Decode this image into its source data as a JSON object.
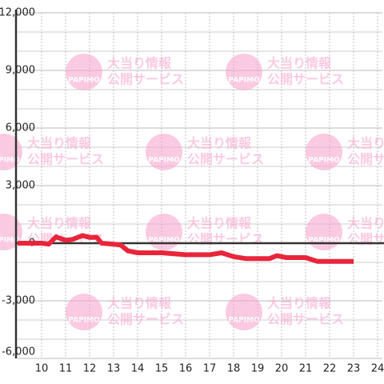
{
  "chart_data": {
    "type": "line",
    "x": [
      9,
      10,
      10.3,
      10.6,
      11,
      11.3,
      11.7,
      12,
      12.3,
      12.5,
      13,
      13.3,
      13.6,
      14,
      15,
      16,
      17,
      17.5,
      18,
      18.5,
      19,
      19.5,
      19.8,
      20.2,
      21,
      21.5,
      22,
      23
    ],
    "series": [
      {
        "color": "#e8253a",
        "values": [
          0,
          0,
          -50,
          330,
          150,
          200,
          400,
          300,
          300,
          0,
          -50,
          -100,
          -400,
          -500,
          -500,
          -600,
          -600,
          -500,
          -700,
          -800,
          -800,
          -800,
          -650,
          -750,
          -750,
          -950,
          -950,
          -950
        ]
      }
    ],
    "xlim": [
      9,
      24.2
    ],
    "xticks": [
      10,
      11,
      12,
      13,
      14,
      15,
      16,
      17,
      18,
      19,
      20,
      21,
      22,
      23,
      24
    ],
    "ylim": [
      -6000,
      12000
    ],
    "yticks": [
      {
        "value": 12000,
        "label": "12,000"
      },
      {
        "value": 9000,
        "label": "9,000"
      },
      {
        "value": 6000,
        "label": "6,000"
      },
      {
        "value": 3000,
        "label": "3,000"
      },
      0,
      {
        "value": -3000,
        "label": "-3,000"
      },
      {
        "value": -6000,
        "label": "-6,000"
      }
    ],
    "minor_yticks": [
      11000,
      10000,
      8000,
      7000,
      5000,
      4000,
      2000,
      1000,
      -1000,
      -2000,
      -4000,
      -5000
    ],
    "grid": true
  },
  "watermark": {
    "logo": "PAPIMO",
    "line1": "大当り情報",
    "line2": "公開サービス"
  }
}
